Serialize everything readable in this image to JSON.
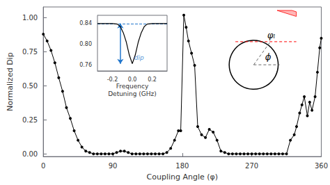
{
  "chart_data": [
    {
      "type": "line",
      "title": "",
      "xlabel": "Coupling Angle (φ)",
      "ylabel": "Normalized Dip",
      "x": [
        0,
        5,
        10,
        15,
        20,
        25,
        30,
        35,
        40,
        45,
        50,
        55,
        60,
        65,
        70,
        75,
        80,
        85,
        90,
        95,
        100,
        105,
        110,
        115,
        120,
        125,
        130,
        135,
        140,
        145,
        150,
        155,
        160,
        165,
        170,
        175,
        178,
        182,
        185,
        188,
        192,
        196,
        200,
        205,
        210,
        215,
        220,
        225,
        230,
        235,
        240,
        245,
        250,
        255,
        260,
        265,
        270,
        275,
        280,
        285,
        290,
        295,
        300,
        305,
        310,
        315,
        320,
        325,
        328,
        332,
        335,
        338,
        342,
        345,
        348,
        352,
        355,
        358,
        360
      ],
      "values": [
        0.88,
        0.83,
        0.76,
        0.67,
        0.56,
        0.46,
        0.34,
        0.26,
        0.17,
        0.1,
        0.05,
        0.02,
        0.01,
        0.0,
        0.0,
        0.0,
        0.0,
        0.0,
        0.0,
        0.01,
        0.02,
        0.02,
        0.01,
        0.0,
        0.0,
        0.0,
        0.0,
        0.0,
        0.0,
        0.0,
        0.0,
        0.0,
        0.01,
        0.04,
        0.1,
        0.17,
        0.17,
        1.02,
        0.93,
        0.83,
        0.74,
        0.65,
        0.2,
        0.14,
        0.12,
        0.18,
        0.16,
        0.1,
        0.02,
        0.01,
        0.0,
        0.0,
        0.0,
        0.0,
        0.0,
        0.0,
        0.0,
        0.0,
        0.0,
        0.0,
        0.0,
        0.0,
        0.0,
        0.0,
        0.0,
        0.0,
        0.1,
        0.14,
        0.2,
        0.3,
        0.36,
        0.42,
        0.28,
        0.38,
        0.32,
        0.42,
        0.6,
        0.78,
        0.85
      ],
      "color": "#000000",
      "marker": "circle",
      "xlim": [
        0,
        360
      ],
      "ylim": [
        -0.02,
        1.08
      ],
      "xticks": [
        0,
        90,
        180,
        270,
        360
      ],
      "yticks": [
        {
          "value": 0,
          "label": "0.00"
        },
        0.25,
        {
          "value": 0.5,
          "label": "0.50"
        },
        0.75,
        {
          "value": 1,
          "label": "1.00"
        }
      ],
      "grid": false,
      "annotations": [
        "φₗ",
        "ϕ"
      ]
    },
    {
      "type": "line",
      "xlabel": "Frequency\nDetuning (GHz)",
      "x": [
        -0.35,
        -0.3,
        -0.25,
        -0.2,
        -0.15,
        -0.12,
        -0.09,
        -0.06,
        -0.03,
        0.0,
        0.03,
        0.06,
        0.09,
        0.12,
        0.15,
        0.2,
        0.25,
        0.3,
        0.35
      ],
      "values": [
        0.84,
        0.84,
        0.84,
        0.84,
        0.839,
        0.834,
        0.822,
        0.804,
        0.779,
        0.762,
        0.779,
        0.804,
        0.822,
        0.834,
        0.839,
        0.84,
        0.84,
        0.84,
        0.84
      ],
      "color": "#000000",
      "xlim": [
        -0.35,
        0.35
      ],
      "ylim": [
        0.748,
        0.856
      ],
      "xticks": [
        -0.2,
        {
          "value": 0,
          "label": "0.0"
        },
        0.2
      ],
      "yticks": [
        0.76,
        {
          "value": 0.8,
          "label": "0.80"
        },
        0.84
      ],
      "grid": false,
      "hline": {
        "y": 0.84,
        "color": "#2277cc"
      },
      "arrow": {
        "x": -0.12,
        "y_top": 0.84,
        "y_bottom": 0.762,
        "color": "#2277cc"
      },
      "annotations": [
        {
          "text": "dip",
          "x": 0.02,
          "y": 0.773,
          "color": "#2277cc"
        }
      ]
    }
  ]
}
